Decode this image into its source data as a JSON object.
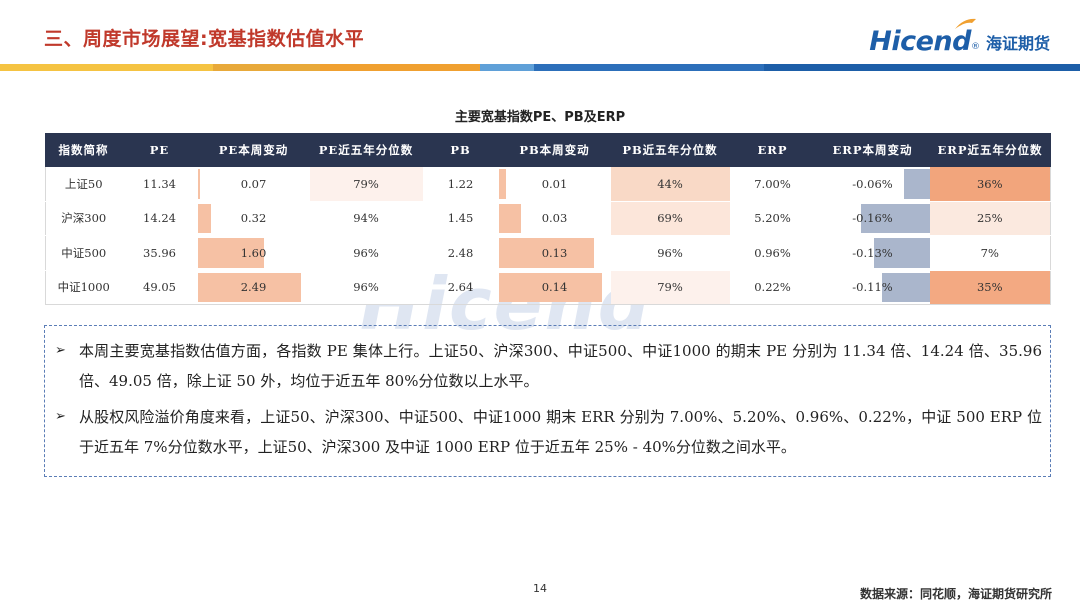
{
  "header": {
    "title": "三、周度市场展望:宽基指数估值水平",
    "logo_en": "Hicend",
    "logo_registered": "®",
    "logo_cn": "海证期货",
    "stripe_colors": [
      "#f5c342",
      "#e8a93a",
      "#f0a030",
      "#1d5ea8",
      "#5fa0d8",
      "#2c6fba",
      "#1d5ea8"
    ]
  },
  "watermark": {
    "text": "Hicend",
    "mark": "®"
  },
  "table": {
    "title": "主要宽基指数PE、PB及ERP",
    "columns": [
      "指数简称",
      "PE",
      "PE本周变动",
      "PE近五年分位数",
      "PB",
      "PB本周变动",
      "PB近五年分位数",
      "ERP",
      "ERP本周变动",
      "ERP近五年分位数"
    ],
    "rows": [
      {
        "name": "上证50",
        "pe": "11.34",
        "pe_change": "0.07",
        "pe_pct": "79%",
        "pb": "1.22",
        "pb_change": "0.01",
        "pb_pct": "44%",
        "erp": "7.00%",
        "erp_change": "-0.06%",
        "erp_pct": "36%",
        "pe_change_value": 0.07,
        "pb_change_value": 0.01,
        "erp_change_value": -0.06,
        "pe_pct_color": "#fdf1ec",
        "pb_pct_color": "#f9d9c6",
        "erp_pct_color": "#f2a57c"
      },
      {
        "name": "沪深300",
        "pe": "14.24",
        "pe_change": "0.32",
        "pe_pct": "94%",
        "pb": "1.45",
        "pb_change": "0.03",
        "pb_pct": "69%",
        "erp": "5.20%",
        "erp_change": "-0.16%",
        "erp_pct": "25%",
        "pe_change_value": 0.32,
        "pb_change_value": 0.03,
        "erp_change_value": -0.16,
        "pe_pct_color": "#ffffff",
        "pb_pct_color": "#fce6da",
        "erp_pct_color": "#fbe9df"
      },
      {
        "name": "中证500",
        "pe": "35.96",
        "pe_change": "1.60",
        "pe_pct": "96%",
        "pb": "2.48",
        "pb_change": "0.13",
        "pb_pct": "96%",
        "erp": "0.96%",
        "erp_change": "-0.13%",
        "erp_pct": "7%",
        "pe_change_value": 1.6,
        "pb_change_value": 0.13,
        "erp_change_value": -0.13,
        "pe_pct_color": "#ffffff",
        "pb_pct_color": "#ffffff",
        "erp_pct_color": "#ffffff"
      },
      {
        "name": "中证1000",
        "pe": "49.05",
        "pe_change": "2.49",
        "pe_pct": "96%",
        "pb": "2.64",
        "pb_change": "0.14",
        "pb_pct": "79%",
        "erp": "0.22%",
        "erp_change": "-0.11%",
        "erp_pct": "35%",
        "pe_change_value": 2.49,
        "pb_change_value": 0.14,
        "erp_change_value": -0.11,
        "pe_pct_color": "#ffffff",
        "pb_pct_color": "#fdf1ec",
        "erp_pct_color": "#f3a982"
      }
    ],
    "bar_colors": {
      "positive": "#f6c1a4",
      "negative": "#aab6cc"
    }
  },
  "commentary": {
    "bullet_icon": "arrow-bullet-icon",
    "bullet_symbol": "➢",
    "bullets": [
      "本周主要宽基指数估值方面，各指数 PE 集体上行。上证50、沪深300、中证500、中证1000 的期末 PE 分别为 11.34 倍、14.24 倍、35.96 倍、49.05 倍，除上证 50 外，均位于近五年 80%分位数以上水平。",
      "从股权风险溢价角度来看，上证50、沪深300、中证500、中证1000 期末 ERR 分别为 7.00%、5.20%、0.96%、0.22%，中证 500 ERP 位于近五年 7%分位数水平，上证50、沪深300 及中证 1000 ERP 位于近五年 25% - 40%分位数之间水平。"
    ]
  },
  "footer": {
    "page_number": "14",
    "source": "数据来源：同花顺，海证期货研究所"
  }
}
